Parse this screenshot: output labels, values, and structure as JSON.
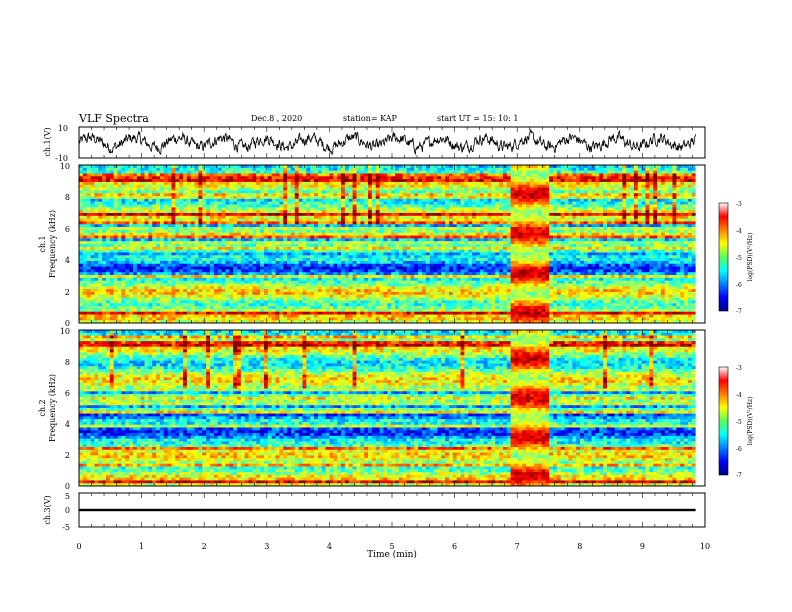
{
  "header": {
    "title": "VLF Spectra",
    "date": "Dec.8 , 2020",
    "station": "station= KAP",
    "start": "start  UT =  15: 10: 1"
  },
  "chart_data": [
    {
      "type": "line",
      "ylabel": "ch.1(V)",
      "ylim": [
        -10,
        10
      ],
      "yticks": [
        "10",
        "-10"
      ],
      "x_unit": "min",
      "xlim": [
        0,
        10
      ],
      "description_values": {
        "mean": 0,
        "amplitude_approx": 6
      }
    },
    {
      "type": "heatmap",
      "ylabel_line1": "ch.1",
      "ylabel_line2": "Frequency (kHz)",
      "xlim": [
        0,
        10
      ],
      "ylim": [
        0,
        10
      ],
      "yticks": [
        "0",
        "2",
        "4",
        "6",
        "8",
        "10"
      ],
      "colorbar": {
        "label": "log(PSD)(V²/Hz)",
        "ticks": [
          "-3",
          "-4",
          "-5",
          "-6",
          "-7"
        ],
        "range": [
          -7,
          -3
        ]
      },
      "burst_interval_min": [
        6.9,
        7.5
      ]
    },
    {
      "type": "heatmap",
      "ylabel_line1": "ch.2",
      "ylabel_line2": "Frequency (kHz)",
      "xlim": [
        0,
        10
      ],
      "ylim": [
        0,
        10
      ],
      "yticks": [
        "0",
        "2",
        "4",
        "6",
        "8",
        "10"
      ],
      "colorbar": {
        "label": "log(PSD)(V²/Hz)",
        "ticks": [
          "-3",
          "-4",
          "-5",
          "-6",
          "-7"
        ],
        "range": [
          -7,
          -3
        ]
      },
      "burst_interval_min": [
        6.9,
        7.5
      ]
    },
    {
      "type": "line",
      "ylabel": "ch.3(V)",
      "ylim": [
        -5,
        5
      ],
      "yticks": [
        "5",
        "0",
        "-5"
      ],
      "constant_value_band": [
        -0.4,
        0.4
      ],
      "xlabel": "Time  (min)",
      "xlim": [
        0,
        10
      ],
      "xticks": [
        "0",
        "1",
        "2",
        "3",
        "4",
        "5",
        "6",
        "7",
        "8",
        "9",
        "10"
      ]
    }
  ],
  "colors": {
    "trace": "#000000",
    "jet_low": "#000080",
    "jet_high": "#800000"
  }
}
